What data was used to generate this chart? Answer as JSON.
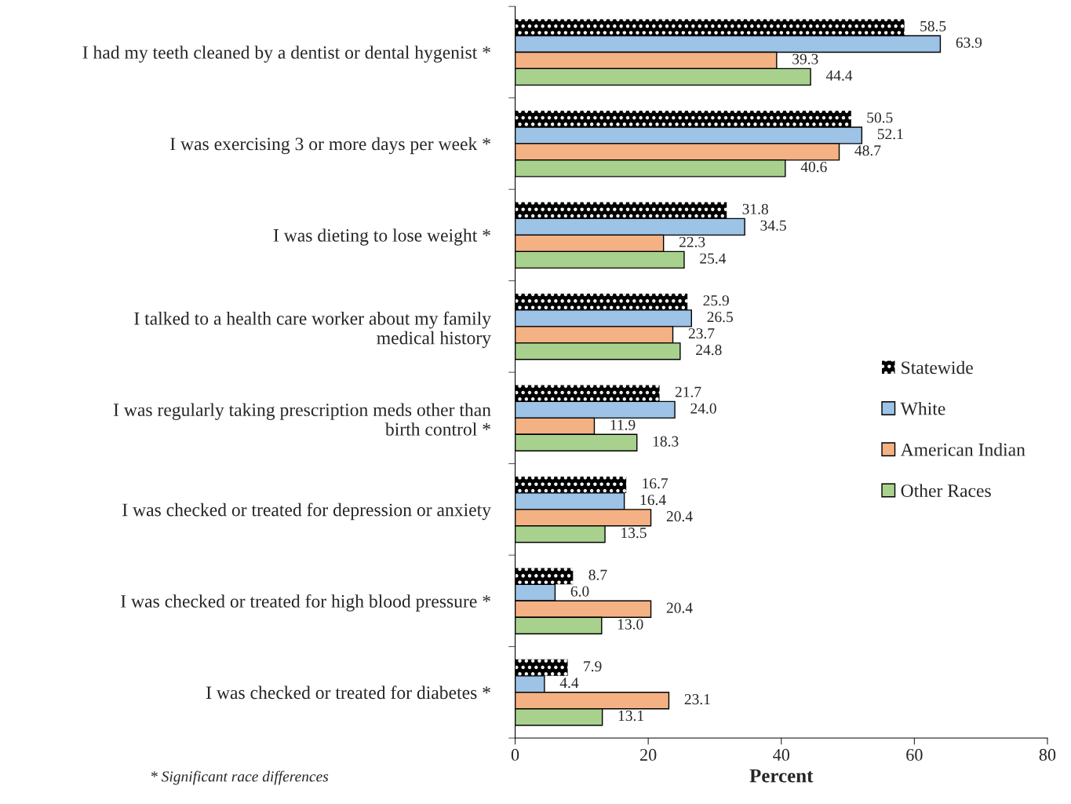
{
  "chart_data": {
    "type": "bar",
    "orientation": "horizontal",
    "categories": [
      "I had my teeth cleaned by a dentist or dental hygenist *",
      "I was exercising 3 or more days per week *",
      "I was dieting to lose weight *",
      "I talked to a health care worker about my family\nmedical history",
      "I was regularly taking prescription meds other than\nbirth control *",
      "I was checked or treated for depression or anxiety",
      "I was checked or treated for high blood pressure *",
      "I was checked or treated for diabetes *"
    ],
    "series": [
      {
        "name": "Statewide",
        "color": "#000000",
        "values": [
          58.5,
          50.5,
          31.8,
          25.9,
          21.7,
          16.7,
          8.7,
          7.9
        ],
        "value_labels": [
          "58.5",
          "50.5",
          "31.8",
          "25.9",
          "21.7",
          "16.7",
          "8.7",
          "7.9"
        ]
      },
      {
        "name": "White",
        "color": "#9dc3e6",
        "values": [
          63.9,
          52.1,
          34.5,
          26.5,
          24.0,
          16.4,
          6.0,
          4.4
        ],
        "value_labels": [
          "63.9",
          "52.1",
          "34.5",
          "26.5",
          "24.0",
          "16.4",
          "6.0",
          "4.4"
        ]
      },
      {
        "name": "American Indian",
        "color": "#f4b183",
        "values": [
          39.3,
          48.7,
          22.3,
          23.7,
          11.9,
          20.4,
          20.4,
          23.1
        ],
        "value_labels": [
          "39.3",
          "48.7",
          "22.3",
          "23.7",
          "11.9",
          "20.4",
          "20.4",
          "23.1"
        ]
      },
      {
        "name": "Other Races",
        "color": "#a9d18e",
        "values": [
          44.4,
          40.6,
          25.4,
          24.8,
          18.3,
          13.5,
          13.0,
          13.1
        ],
        "value_labels": [
          "44.4",
          "40.6",
          "25.4",
          "24.8",
          "18.3",
          "13.5",
          "13.0",
          "13.1"
        ]
      }
    ],
    "xlabel": "Percent",
    "xlim": [
      0,
      80
    ],
    "xticks": [
      0,
      20,
      40,
      60,
      80
    ],
    "legend": "right",
    "grid": false,
    "annotations": [
      "* Significant race differences"
    ]
  }
}
